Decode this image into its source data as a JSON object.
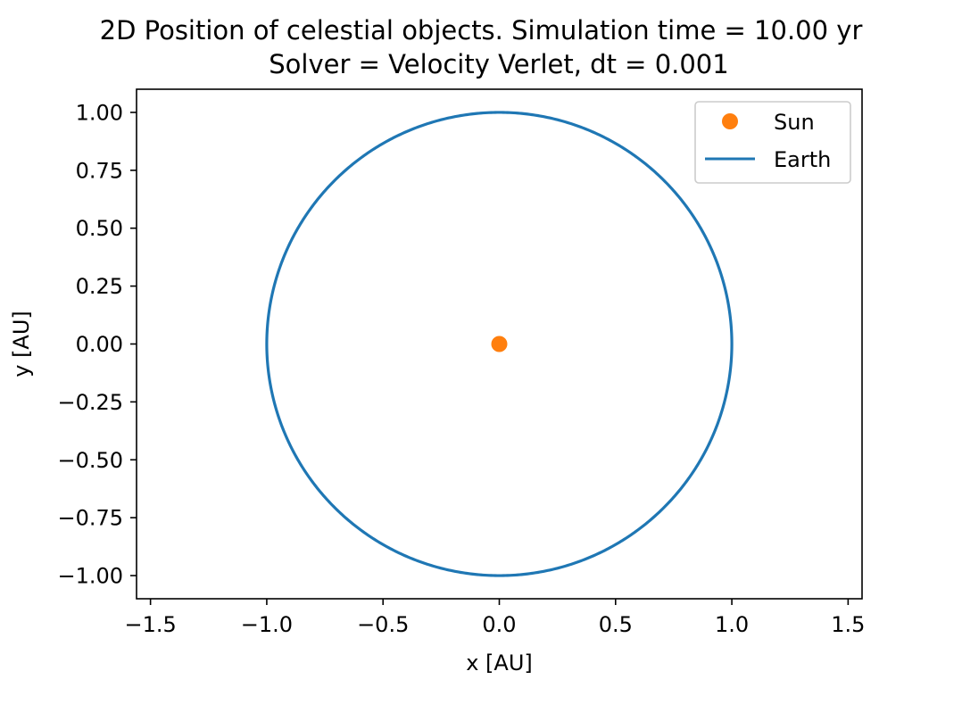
{
  "colors": {
    "sun": "#ff7f0e",
    "earth": "#1f77b4"
  },
  "chart_data": {
    "type": "line",
    "title_line1": "2D Position of celestial objects. Simulation time = 10.00 yr",
    "title_line2": "Solver = Velocity Verlet,  dt = 0.001",
    "xlabel": "x [AU]",
    "ylabel": "y [AU]",
    "xlim": [
      -1.56,
      1.56
    ],
    "ylim": [
      -1.1,
      1.1
    ],
    "xticks": [
      -1.5,
      -1.0,
      -0.5,
      0.0,
      0.5,
      1.0,
      1.5
    ],
    "xtick_labels": [
      "−1.5",
      "−1.0",
      "−0.5",
      "0.0",
      "0.5",
      "1.0",
      "1.5"
    ],
    "yticks": [
      1.0,
      0.75,
      0.5,
      0.25,
      0.0,
      -0.25,
      -0.5,
      -0.75,
      -1.0
    ],
    "ytick_labels": [
      "1.00",
      "0.75",
      "0.50",
      "0.25",
      "0.00",
      "−0.25",
      "−0.50",
      "−0.75",
      "−1.00"
    ],
    "grid": false,
    "legend_position": "top-right",
    "series": [
      {
        "name": "Sun",
        "kind": "point",
        "color": "#ff7f0e",
        "points": [
          [
            0.0,
            0.0
          ]
        ]
      },
      {
        "name": "Earth",
        "kind": "orbit",
        "color": "#1f77b4",
        "center": [
          0.0,
          0.0
        ],
        "radius": 1.0
      }
    ]
  }
}
